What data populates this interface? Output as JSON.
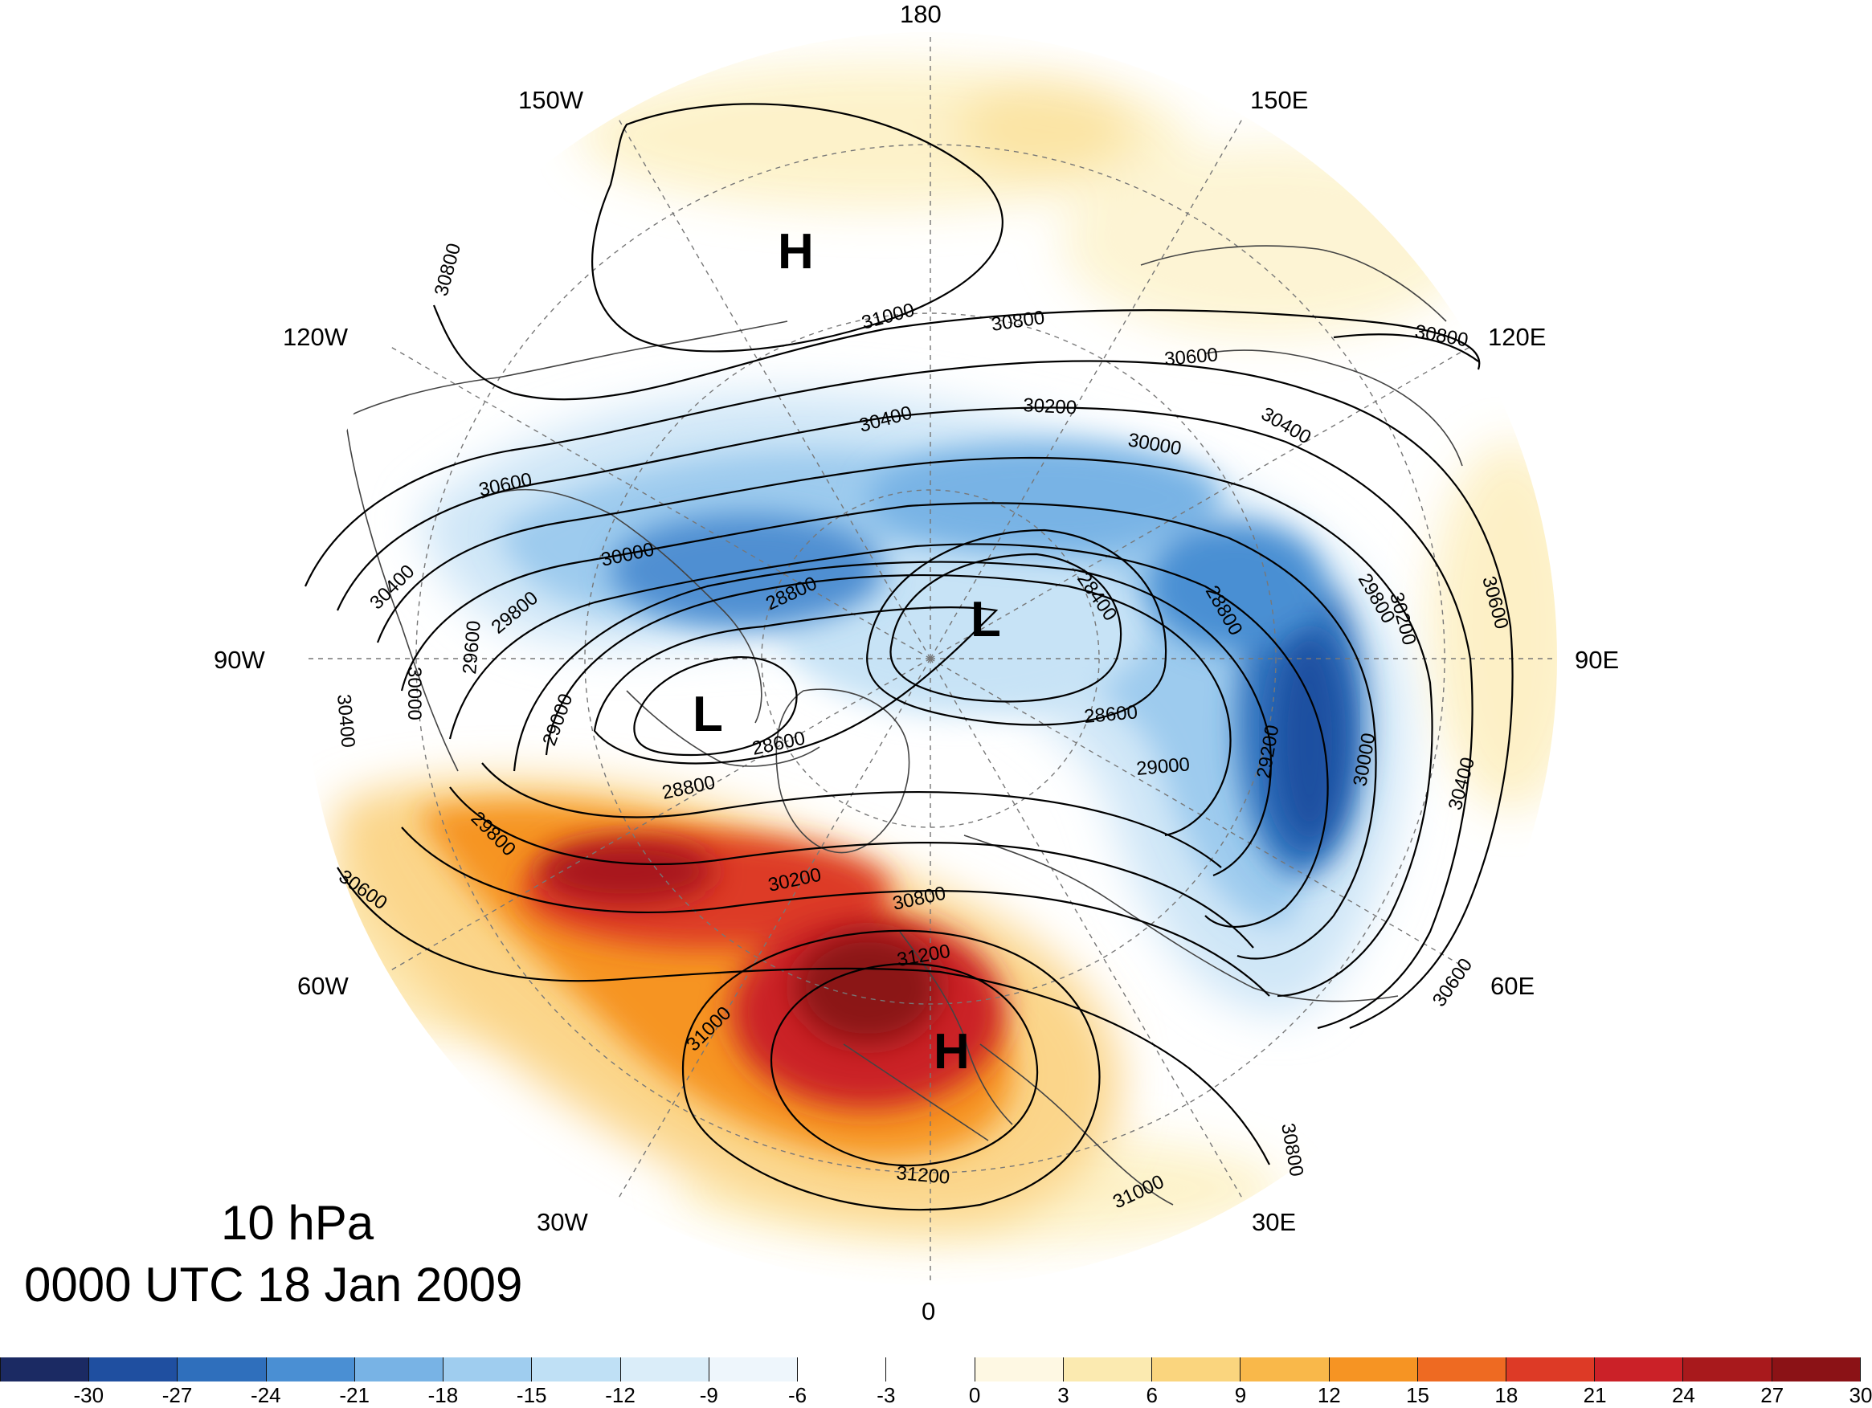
{
  "title": {
    "level": "10 hPa",
    "time": "0000 UTC 18 Jan 2009"
  },
  "longitude_labels": [
    "180",
    "150E",
    "120E",
    "90E",
    "60E",
    "30E",
    "0",
    "30W",
    "60W",
    "90W",
    "120W",
    "150W"
  ],
  "pressure_centers": [
    {
      "type": "H",
      "note": "high over Alaska/Bering"
    },
    {
      "type": "L",
      "note": "low near pole"
    },
    {
      "type": "L",
      "note": "low over Hudson Bay / Canada"
    },
    {
      "type": "H",
      "note": "high over Europe"
    }
  ],
  "contour_labels": [
    "30800",
    "31000",
    "30800",
    "30800",
    "30600",
    "30400",
    "30200",
    "30000",
    "30400",
    "30600",
    "30400",
    "30000",
    "29800",
    "28800",
    "28400",
    "29800",
    "30200",
    "28800",
    "30600",
    "30400",
    "30000",
    "29600",
    "29000",
    "28600",
    "28600",
    "29000",
    "29200",
    "30000",
    "30400",
    "29800",
    "28800",
    "30200",
    "30600",
    "30800",
    "31200",
    "31000",
    "31200",
    "31000",
    "30800",
    "30600"
  ],
  "colorbar": {
    "labels": [
      "-30",
      "-27",
      "-24",
      "-21",
      "-18",
      "-15",
      "-12",
      "-9",
      "-6",
      "-3",
      "0",
      "3",
      "6",
      "9",
      "12",
      "15",
      "18",
      "21",
      "24",
      "27",
      "30"
    ],
    "colors": [
      "#1b2a63",
      "#1f4fa0",
      "#2f6fbc",
      "#4a8fd3",
      "#78b3e5",
      "#9fcdef",
      "#bfe0f5",
      "#daedf9",
      "#eef6fc",
      "#ffffff",
      "#ffffff",
      "#fef8e3",
      "#fbeab0",
      "#fad57e",
      "#f9b84a",
      "#f69423",
      "#ee6a22",
      "#dd3a26",
      "#cb2128",
      "#a8191c",
      "#8b1216"
    ]
  },
  "colors": {
    "contour": "#000000",
    "coast": "#444444",
    "grid": "#777777"
  }
}
